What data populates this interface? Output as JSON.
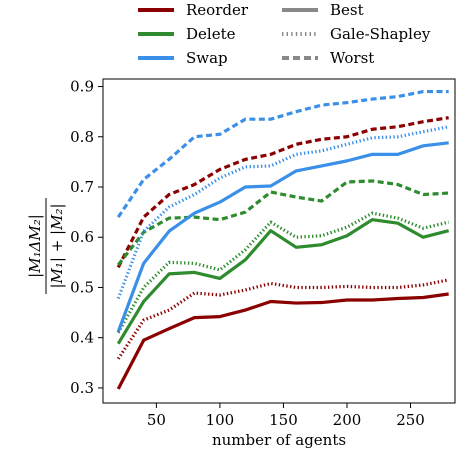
{
  "chart_data": {
    "type": "line",
    "xlabel": "number of agents",
    "ylabel": "|M₁ΔM₂| / (|M₁|+|M₂|)",
    "xlim": [
      8,
      285
    ],
    "ylim": [
      0.27,
      0.915
    ],
    "xticks": [
      50,
      100,
      150,
      200,
      250
    ],
    "yticks": [
      0.3,
      0.4,
      0.5,
      0.6,
      0.7,
      0.8,
      0.9
    ],
    "x": [
      20,
      40,
      60,
      80,
      100,
      120,
      140,
      160,
      180,
      200,
      220,
      240,
      260,
      280
    ],
    "grid": false,
    "legend_position": "top",
    "methods": [
      {
        "name": "Reorder",
        "color": "#8b0000"
      },
      {
        "name": "Delete",
        "color": "#2e8b2e"
      },
      {
        "name": "Swap",
        "color": "#3a8fe8"
      }
    ],
    "variants": [
      {
        "name": "Best",
        "style": "solid"
      },
      {
        "name": "Gale-Shapley",
        "style": "dotted"
      },
      {
        "name": "Worst",
        "style": "dashed"
      }
    ],
    "series": [
      {
        "method": "Reorder",
        "variant": "Best",
        "values": [
          0.298,
          0.395,
          0.418,
          0.44,
          0.442,
          0.455,
          0.472,
          0.469,
          0.47,
          0.475,
          0.475,
          0.478,
          0.48,
          0.487
        ]
      },
      {
        "method": "Reorder",
        "variant": "Gale-Shapley",
        "values": [
          0.358,
          0.435,
          0.455,
          0.489,
          0.485,
          0.495,
          0.508,
          0.5,
          0.5,
          0.502,
          0.5,
          0.5,
          0.505,
          0.515
        ]
      },
      {
        "method": "Reorder",
        "variant": "Worst",
        "values": [
          0.54,
          0.64,
          0.685,
          0.705,
          0.735,
          0.755,
          0.765,
          0.785,
          0.795,
          0.8,
          0.815,
          0.82,
          0.83,
          0.838
        ]
      },
      {
        "method": "Delete",
        "variant": "Best",
        "values": [
          0.388,
          0.472,
          0.527,
          0.53,
          0.518,
          0.555,
          0.613,
          0.58,
          0.585,
          0.603,
          0.635,
          0.628,
          0.6,
          0.613
        ]
      },
      {
        "method": "Delete",
        "variant": "Gale-Shapley",
        "values": [
          0.41,
          0.5,
          0.55,
          0.548,
          0.535,
          0.575,
          0.63,
          0.6,
          0.603,
          0.62,
          0.648,
          0.638,
          0.618,
          0.63
        ]
      },
      {
        "method": "Delete",
        "variant": "Worst",
        "values": [
          0.545,
          0.61,
          0.638,
          0.64,
          0.635,
          0.65,
          0.69,
          0.68,
          0.672,
          0.71,
          0.712,
          0.705,
          0.685,
          0.688
        ]
      },
      {
        "method": "Swap",
        "variant": "Best",
        "values": [
          0.412,
          0.548,
          0.612,
          0.648,
          0.67,
          0.7,
          0.702,
          0.732,
          0.742,
          0.752,
          0.765,
          0.765,
          0.782,
          0.788
        ]
      },
      {
        "method": "Swap",
        "variant": "Gale-Shapley",
        "values": [
          0.478,
          0.612,
          0.66,
          0.685,
          0.718,
          0.74,
          0.742,
          0.765,
          0.772,
          0.785,
          0.798,
          0.8,
          0.81,
          0.82
        ]
      },
      {
        "method": "Swap",
        "variant": "Worst",
        "values": [
          0.64,
          0.715,
          0.755,
          0.8,
          0.805,
          0.835,
          0.835,
          0.85,
          0.863,
          0.868,
          0.875,
          0.88,
          0.89,
          0.89
        ]
      }
    ]
  }
}
